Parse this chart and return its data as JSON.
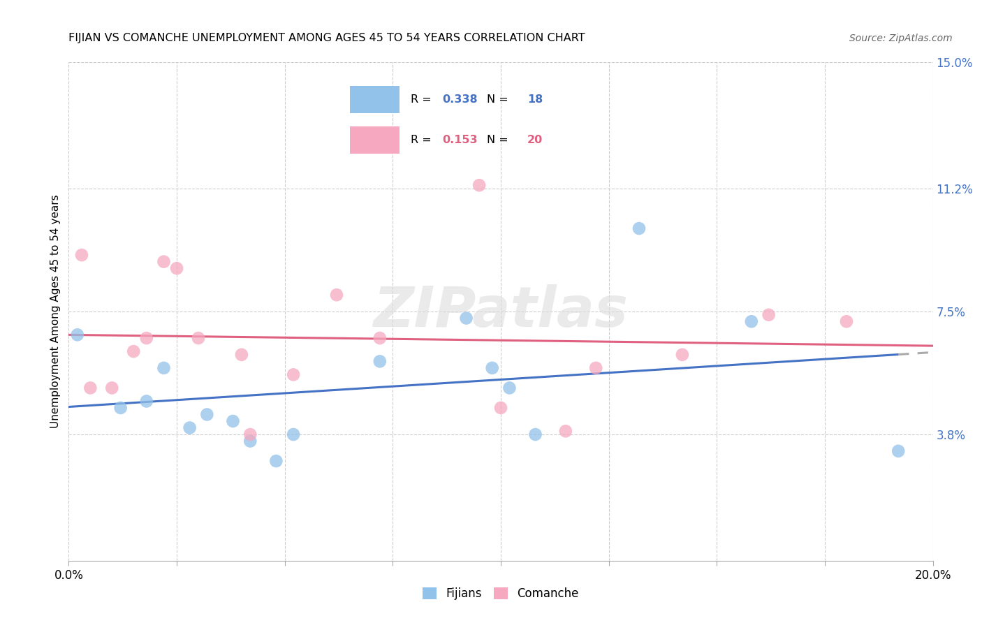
{
  "title": "FIJIAN VS COMANCHE UNEMPLOYMENT AMONG AGES 45 TO 54 YEARS CORRELATION CHART",
  "source": "Source: ZipAtlas.com",
  "ylabel": "Unemployment Among Ages 45 to 54 years",
  "xlim": [
    0.0,
    0.2
  ],
  "ylim": [
    0.0,
    0.15
  ],
  "yticks": [
    0.038,
    0.075,
    0.112,
    0.15
  ],
  "ytick_labels": [
    "3.8%",
    "7.5%",
    "11.2%",
    "15.0%"
  ],
  "xticks": [
    0.0,
    0.025,
    0.05,
    0.075,
    0.1,
    0.125,
    0.15,
    0.175,
    0.2
  ],
  "xtick_labels_show": {
    "0.0": "0.0%",
    "0.20": "20.0%"
  },
  "fijians_R": 0.338,
  "fijians_N": 18,
  "comanche_R": 0.153,
  "comanche_N": 20,
  "fijians_color": "#92C1E9",
  "comanche_color": "#F5A8BF",
  "fijians_line_color": "#4472C4",
  "comanche_line_color": "#E06080",
  "watermark": "ZIPatlas",
  "fijians_x": [
    0.002,
    0.012,
    0.018,
    0.022,
    0.028,
    0.032,
    0.038,
    0.042,
    0.048,
    0.052,
    0.072,
    0.092,
    0.098,
    0.102,
    0.108,
    0.132,
    0.158,
    0.192
  ],
  "fijians_y": [
    0.068,
    0.046,
    0.048,
    0.058,
    0.04,
    0.044,
    0.042,
    0.036,
    0.03,
    0.038,
    0.06,
    0.073,
    0.058,
    0.052,
    0.038,
    0.1,
    0.072,
    0.033
  ],
  "comanche_x": [
    0.003,
    0.005,
    0.01,
    0.015,
    0.018,
    0.022,
    0.025,
    0.03,
    0.04,
    0.042,
    0.052,
    0.062,
    0.072,
    0.095,
    0.1,
    0.115,
    0.122,
    0.142,
    0.162,
    0.18
  ],
  "comanche_y": [
    0.092,
    0.052,
    0.052,
    0.063,
    0.067,
    0.09,
    0.088,
    0.067,
    0.062,
    0.038,
    0.056,
    0.08,
    0.067,
    0.113,
    0.046,
    0.039,
    0.058,
    0.062,
    0.074,
    0.072
  ]
}
